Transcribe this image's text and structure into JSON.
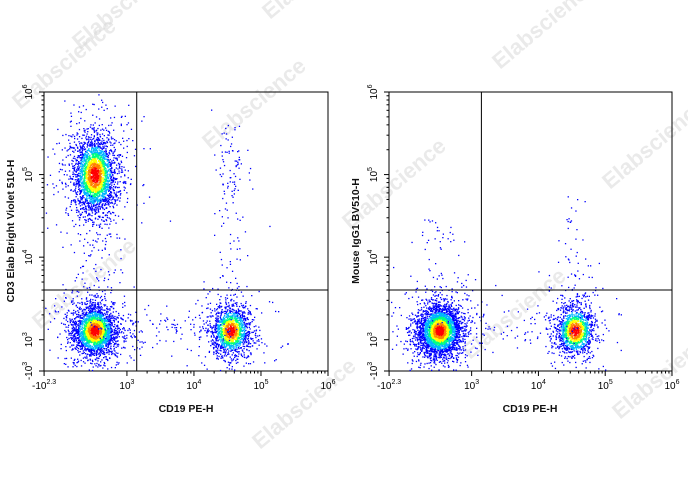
{
  "watermark": "Elabscience",
  "colors": {
    "density": [
      "#0000ff",
      "#00b4ff",
      "#00ff80",
      "#ffff00",
      "#ff8000",
      "#ff0000"
    ],
    "axis": "#000000",
    "gate": "#000000"
  },
  "chart_data": [
    {
      "type": "scatter",
      "style": "density pseudocolor dot plot",
      "title": "",
      "xlabel": "CD19 PE-H",
      "ylabel": "CD3 Elab Bright Violet 510-H",
      "x_scale": "biexponential",
      "y_scale": "biexponential",
      "x_ticks": [
        {
          "base": "-10",
          "exp": "2.3"
        },
        {
          "base": "10",
          "exp": "3"
        },
        {
          "base": "10",
          "exp": "4"
        },
        {
          "base": "10",
          "exp": "5"
        },
        {
          "base": "10",
          "exp": "6"
        }
      ],
      "y_ticks": [
        {
          "base": "-10",
          "exp": "3"
        },
        {
          "base": "10",
          "exp": "3"
        },
        {
          "base": "10",
          "exp": "4"
        },
        {
          "base": "10",
          "exp": "5"
        },
        {
          "base": "10",
          "exp": "6"
        }
      ],
      "gate": {
        "x": 1400,
        "y": 4000
      },
      "populations": [
        {
          "name": "",
          "x_center": 300,
          "y_center": 100000,
          "count": 2600
        },
        {
          "name": "",
          "x_center": 300,
          "y_center": 1300,
          "count": 2400
        },
        {
          "name": "",
          "x_center": 35000,
          "y_center": 1300,
          "count": 1400
        },
        {
          "name": "",
          "x_center": 35000,
          "y_center": 100000,
          "count": 60
        }
      ]
    },
    {
      "type": "scatter",
      "style": "density pseudocolor dot plot",
      "title": "",
      "xlabel": "CD19 PE-H",
      "ylabel": "Mouse IgG1 BV510-H",
      "x_scale": "biexponential",
      "y_scale": "biexponential",
      "x_ticks": [
        {
          "base": "-10",
          "exp": "2.3"
        },
        {
          "base": "10",
          "exp": "3"
        },
        {
          "base": "10",
          "exp": "4"
        },
        {
          "base": "10",
          "exp": "5"
        },
        {
          "base": "10",
          "exp": "6"
        }
      ],
      "y_ticks": [
        {
          "base": "-10",
          "exp": "3"
        },
        {
          "base": "10",
          "exp": "3"
        },
        {
          "base": "10",
          "exp": "4"
        },
        {
          "base": "10",
          "exp": "5"
        },
        {
          "base": "10",
          "exp": "6"
        }
      ],
      "gate": {
        "x": 1400,
        "y": 4000
      },
      "populations": [
        {
          "name": "",
          "x_center": 300,
          "y_center": 1300,
          "count": 3200
        },
        {
          "name": "",
          "x_center": 35000,
          "y_center": 1300,
          "count": 1300
        }
      ]
    }
  ]
}
